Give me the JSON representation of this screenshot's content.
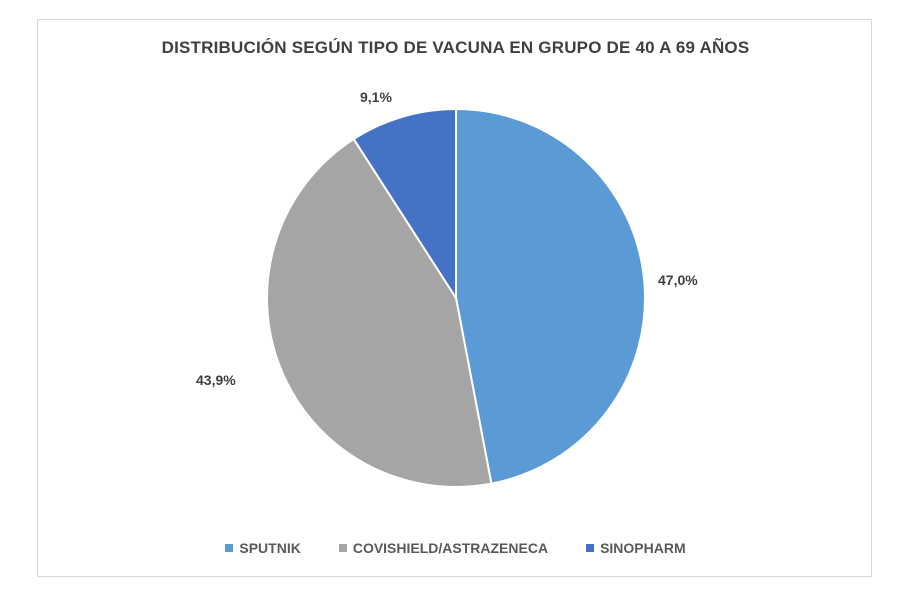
{
  "chart_data": {
    "type": "pie",
    "title": "DISTRIBUCIÓN SEGÚN TIPO DE VACUNA EN GRUPO DE 40 A 69 AÑOS",
    "categories": [
      "SPUTNIK",
      "COVISHIELD/ASTRAZENECA",
      "SINOPHARM"
    ],
    "values": [
      47.0,
      43.9,
      9.1
    ],
    "labels": [
      "47,0%",
      "43,9%",
      "9,1%"
    ],
    "colors": [
      "#5B9BD5",
      "#A5A5A5",
      "#4472C4"
    ],
    "start_angle": "12 o'clock, clockwise",
    "legend_position": "bottom"
  },
  "legend": [
    {
      "label": "SPUTNIK",
      "color": "#5B9BD5"
    },
    {
      "label": "COVISHIELD/ASTRAZENECA",
      "color": "#A5A5A5"
    },
    {
      "label": "SINOPHARM",
      "color": "#4472C4"
    }
  ]
}
